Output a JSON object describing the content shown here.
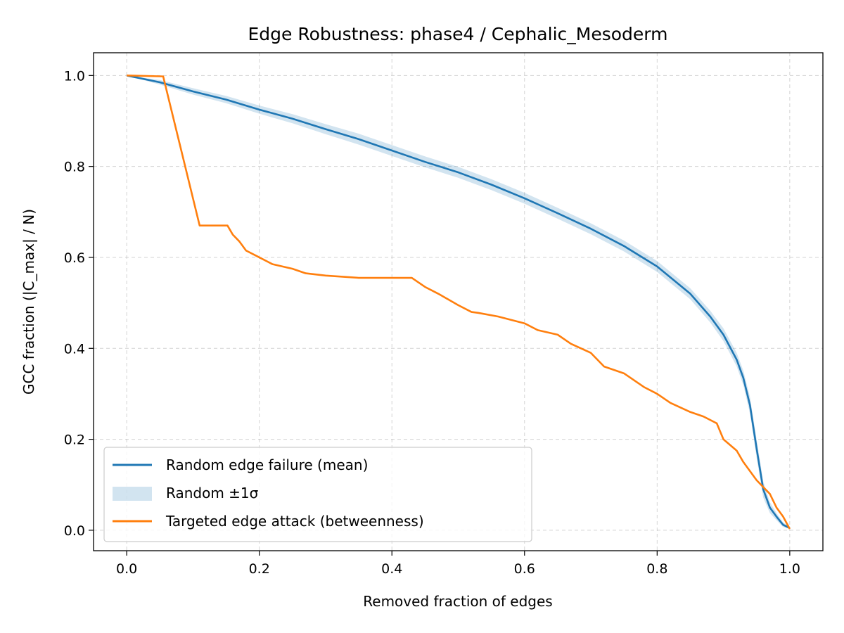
{
  "chart_data": {
    "type": "line",
    "title": "Edge Robustness: phase4 / Cephalic_Mesoderm",
    "xlabel": "Removed fraction of edges",
    "ylabel": "GCC fraction (|C_max| / N)",
    "xlim": [
      -0.05,
      1.05
    ],
    "ylim": [
      -0.045,
      1.05
    ],
    "xticks": [
      0.0,
      0.2,
      0.4,
      0.6,
      0.8,
      1.0
    ],
    "yticks": [
      0.0,
      0.2,
      0.4,
      0.6,
      0.8,
      1.0
    ],
    "xtick_labels": [
      "0.0",
      "0.2",
      "0.4",
      "0.6",
      "0.8",
      "1.0"
    ],
    "ytick_labels": [
      "0.0",
      "0.2",
      "0.4",
      "0.6",
      "0.8",
      "1.0"
    ],
    "grid": true,
    "legend_position": "lower-left",
    "series": [
      {
        "name": "Random edge failure (mean)",
        "kind": "line",
        "color": "#1f77b4",
        "x": [
          0.0,
          0.05,
          0.1,
          0.15,
          0.2,
          0.25,
          0.3,
          0.35,
          0.4,
          0.45,
          0.5,
          0.55,
          0.6,
          0.65,
          0.7,
          0.75,
          0.8,
          0.85,
          0.88,
          0.9,
          0.92,
          0.93,
          0.94,
          0.95,
          0.96,
          0.97,
          0.98,
          0.99,
          1.0
        ],
        "y": [
          1.0,
          0.985,
          0.965,
          0.947,
          0.925,
          0.905,
          0.882,
          0.86,
          0.835,
          0.81,
          0.787,
          0.76,
          0.73,
          0.697,
          0.663,
          0.625,
          0.58,
          0.52,
          0.47,
          0.43,
          0.375,
          0.335,
          0.275,
          0.18,
          0.09,
          0.05,
          0.03,
          0.012,
          0.005
        ]
      },
      {
        "name": "Random ±1σ",
        "kind": "band",
        "color": "#1f77b4",
        "x": [
          0.0,
          0.05,
          0.1,
          0.15,
          0.2,
          0.25,
          0.3,
          0.35,
          0.4,
          0.45,
          0.5,
          0.55,
          0.6,
          0.65,
          0.7,
          0.75,
          0.8,
          0.85,
          0.88,
          0.9,
          0.92,
          0.93,
          0.94,
          0.95,
          0.96,
          0.97,
          0.98,
          0.99,
          1.0
        ],
        "sigma": [
          0.0,
          0.005,
          0.007,
          0.008,
          0.009,
          0.01,
          0.011,
          0.012,
          0.012,
          0.012,
          0.012,
          0.012,
          0.012,
          0.012,
          0.012,
          0.012,
          0.012,
          0.012,
          0.013,
          0.014,
          0.015,
          0.016,
          0.018,
          0.02,
          0.018,
          0.012,
          0.008,
          0.005,
          0.002
        ]
      },
      {
        "name": "Targeted edge attack (betweenness)",
        "kind": "line",
        "color": "#ff7f0e",
        "x": [
          0.0,
          0.055,
          0.11,
          0.152,
          0.16,
          0.17,
          0.18,
          0.2,
          0.22,
          0.25,
          0.27,
          0.3,
          0.35,
          0.43,
          0.45,
          0.47,
          0.5,
          0.52,
          0.53,
          0.56,
          0.6,
          0.62,
          0.65,
          0.67,
          0.7,
          0.72,
          0.75,
          0.78,
          0.8,
          0.82,
          0.85,
          0.87,
          0.89,
          0.9,
          0.92,
          0.93,
          0.95,
          0.97,
          0.98,
          0.99,
          1.0
        ],
        "y": [
          1.0,
          0.998,
          0.67,
          0.67,
          0.65,
          0.635,
          0.615,
          0.6,
          0.585,
          0.575,
          0.565,
          0.56,
          0.555,
          0.555,
          0.535,
          0.52,
          0.495,
          0.48,
          0.478,
          0.47,
          0.455,
          0.44,
          0.43,
          0.41,
          0.39,
          0.36,
          0.345,
          0.315,
          0.3,
          0.28,
          0.26,
          0.25,
          0.235,
          0.2,
          0.175,
          0.15,
          0.11,
          0.08,
          0.05,
          0.03,
          0.003
        ]
      }
    ]
  }
}
